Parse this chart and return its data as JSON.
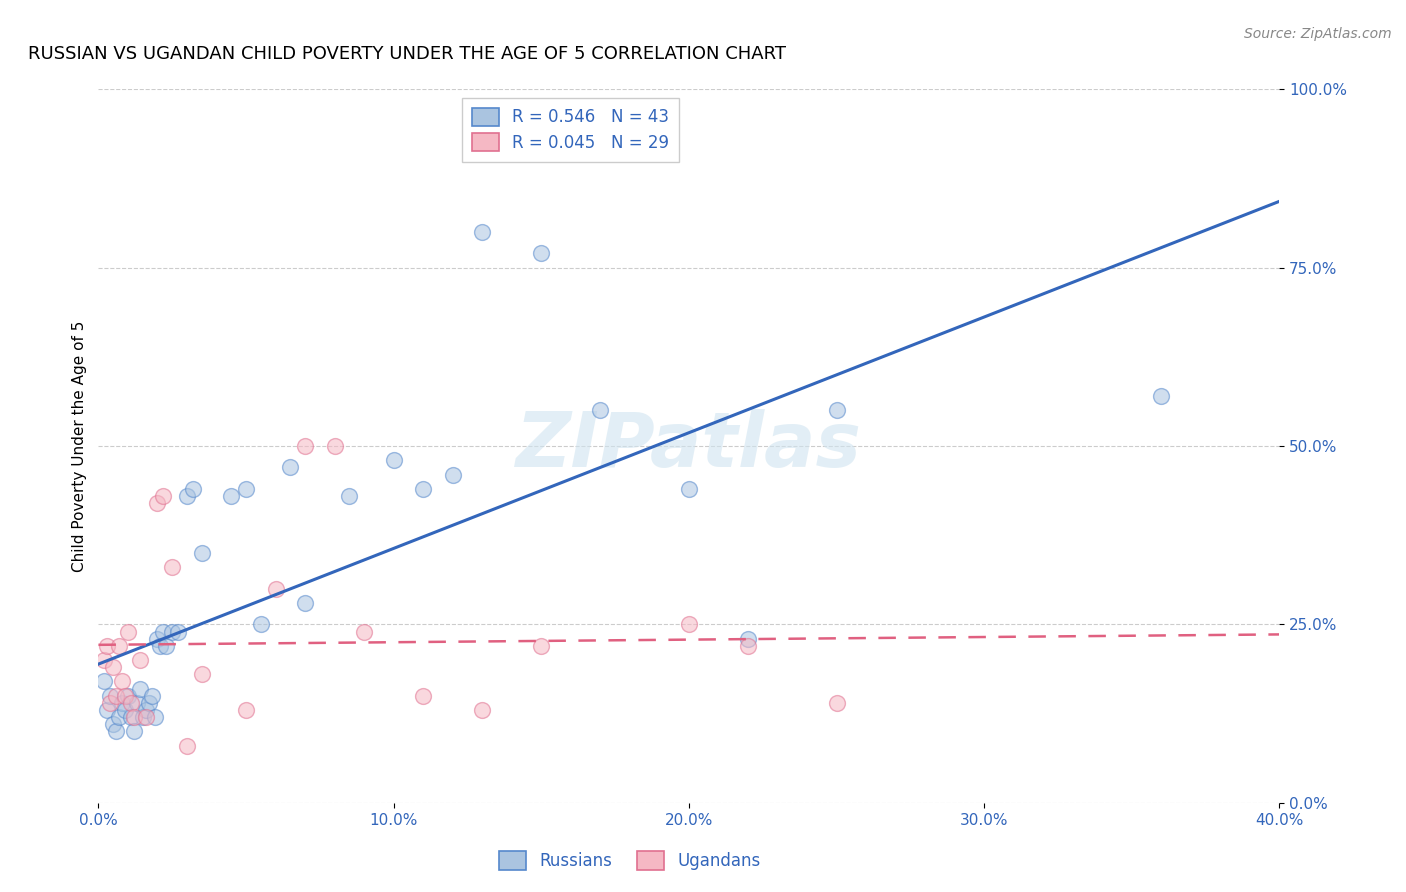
{
  "title": "RUSSIAN VS UGANDAN CHILD POVERTY UNDER THE AGE OF 5 CORRELATION CHART",
  "source": "Source: ZipAtlas.com",
  "xlabel_vals": [
    0.0,
    10.0,
    20.0,
    30.0,
    40.0
  ],
  "ylabel_vals": [
    0.0,
    25.0,
    50.0,
    75.0,
    100.0
  ],
  "russians_x": [
    0.2,
    0.3,
    0.4,
    0.5,
    0.6,
    0.7,
    0.8,
    0.9,
    1.0,
    1.1,
    1.2,
    1.3,
    1.4,
    1.5,
    1.6,
    1.7,
    1.8,
    1.9,
    2.0,
    2.1,
    2.2,
    2.3,
    2.5,
    2.7,
    3.0,
    3.2,
    3.5,
    4.5,
    5.0,
    5.5,
    6.5,
    7.0,
    8.5,
    10.0,
    11.0,
    12.0,
    13.0,
    15.0,
    17.0,
    20.0,
    22.0,
    25.0,
    36.0
  ],
  "russians_y": [
    17.0,
    13.0,
    15.0,
    11.0,
    10.0,
    12.0,
    14.0,
    13.0,
    15.0,
    12.0,
    10.0,
    14.0,
    16.0,
    12.0,
    13.0,
    14.0,
    15.0,
    12.0,
    23.0,
    22.0,
    24.0,
    22.0,
    24.0,
    24.0,
    43.0,
    44.0,
    35.0,
    43.0,
    44.0,
    25.0,
    47.0,
    28.0,
    43.0,
    48.0,
    44.0,
    46.0,
    80.0,
    77.0,
    55.0,
    44.0,
    23.0,
    55.0,
    57.0
  ],
  "ugandans_x": [
    0.2,
    0.3,
    0.4,
    0.5,
    0.6,
    0.7,
    0.8,
    0.9,
    1.0,
    1.1,
    1.2,
    1.4,
    1.6,
    2.0,
    2.2,
    2.5,
    3.0,
    3.5,
    5.0,
    6.0,
    7.0,
    8.0,
    9.0,
    11.0,
    13.0,
    15.0,
    20.0,
    22.0,
    25.0
  ],
  "ugandans_y": [
    20.0,
    22.0,
    14.0,
    19.0,
    15.0,
    22.0,
    17.0,
    15.0,
    24.0,
    14.0,
    12.0,
    20.0,
    12.0,
    42.0,
    43.0,
    33.0,
    8.0,
    18.0,
    13.0,
    30.0,
    50.0,
    50.0,
    24.0,
    15.0,
    13.0,
    22.0,
    25.0,
    22.0,
    14.0
  ],
  "russian_R": 0.546,
  "russian_N": 43,
  "ugandan_R": 0.045,
  "ugandan_N": 29,
  "blue_fill": "#aac4e0",
  "pink_fill": "#f5b8c4",
  "blue_edge": "#5588cc",
  "pink_edge": "#e07090",
  "blue_line": "#3366bb",
  "pink_line": "#e06080",
  "title_fontsize": 13,
  "axis_label_fontsize": 11,
  "tick_fontsize": 11,
  "legend_fontsize": 12,
  "marker_size": 130,
  "marker_alpha": 0.55,
  "watermark_text": "ZIPatlas",
  "background_color": "#ffffff",
  "grid_color": "#cccccc"
}
